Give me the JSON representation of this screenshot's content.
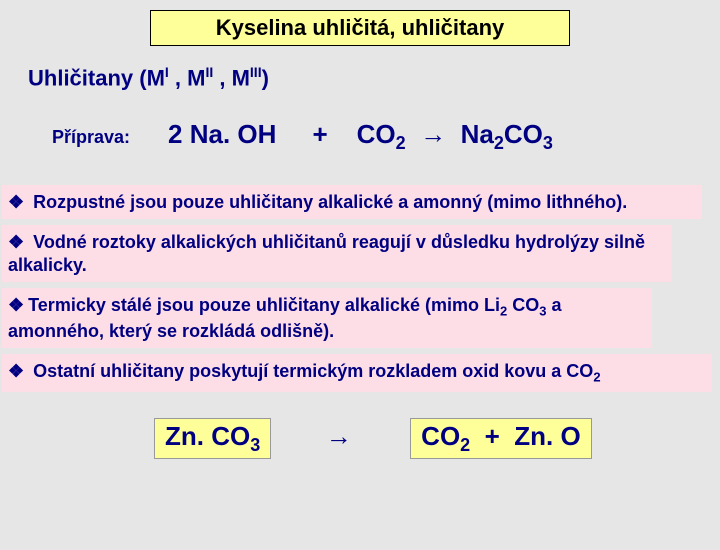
{
  "title": "Kyselina uhličitá, uhličitany",
  "subtitle_prefix": "Uhličitany  (M",
  "subtitle_sup1": "I",
  "subtitle_mid1": " , M",
  "subtitle_sup2": "II",
  "subtitle_mid2": " , M",
  "subtitle_sup3": "III",
  "subtitle_suffix": ")",
  "prep_label": "Příprava:",
  "eq1_left": "2 Na. OH",
  "eq1_plus": "+",
  "eq1_co2": "CO",
  "eq1_co2_sub": "2",
  "eq1_arrow": "→",
  "eq1_na": "Na",
  "eq1_na_sub": "2",
  "eq1_co3": "CO",
  "eq1_co3_sub": "3",
  "bullets": {
    "b1": "Rozpustné jsou pouze uhličitany alkalické a amonný (mimo lithného).",
    "b2": "Vodné roztoky alkalických uhličitanů reagují v důsledku hydrolýzy silně alkalicky.",
    "b3_pre": "Termicky stálé jsou pouze uhličitany alkalické (mimo Li",
    "b3_sub1": "2",
    "b3_mid": " CO",
    "b3_sub2": "3",
    "b3_post": " a amonného, který se rozkládá odlišně).",
    "b4_pre": "Ostatní uhličitany poskytují termickým rozkladem oxid kovu a CO",
    "b4_sub": "2"
  },
  "eq2_zn": "Zn. CO",
  "eq2_zn_sub": "3",
  "eq2_arrow": "→",
  "eq2_co2": "CO",
  "eq2_co2_sub": "2",
  "eq2_plus": "+",
  "eq2_zno": "Zn. O",
  "colors": {
    "bg": "#e6e6e6",
    "title_bg": "#ffff99",
    "bullet_bg": "#fddde6",
    "text": "#000080"
  }
}
